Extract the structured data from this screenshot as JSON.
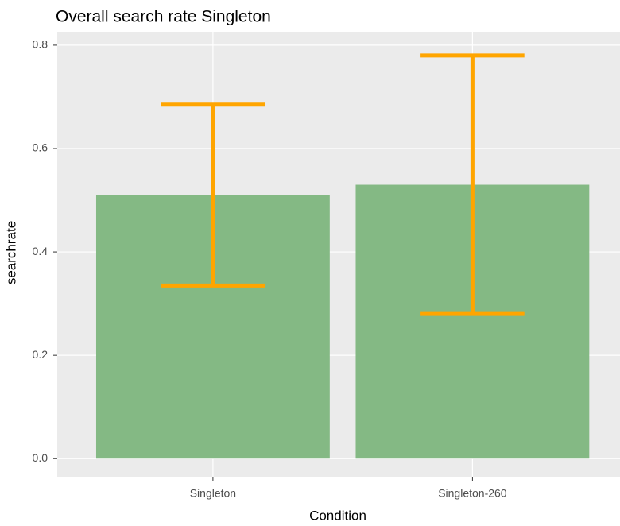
{
  "chart_data": {
    "type": "bar",
    "title": "Overall search rate Singleton",
    "x_label": "Condition",
    "y_label": "searchrate",
    "categories": [
      "Singleton",
      "Singleton-260"
    ],
    "values": [
      0.51,
      0.53
    ],
    "errors": [
      0.175,
      0.25
    ],
    "color": "#84b984",
    "error_color": "#ffa500",
    "ylim": [
      -0.035,
      0.826
    ],
    "yticks": [
      {
        "value": 0,
        "label": "0.0"
      },
      0.2,
      0.4,
      0.6,
      0.8
    ],
    "grid": true
  }
}
